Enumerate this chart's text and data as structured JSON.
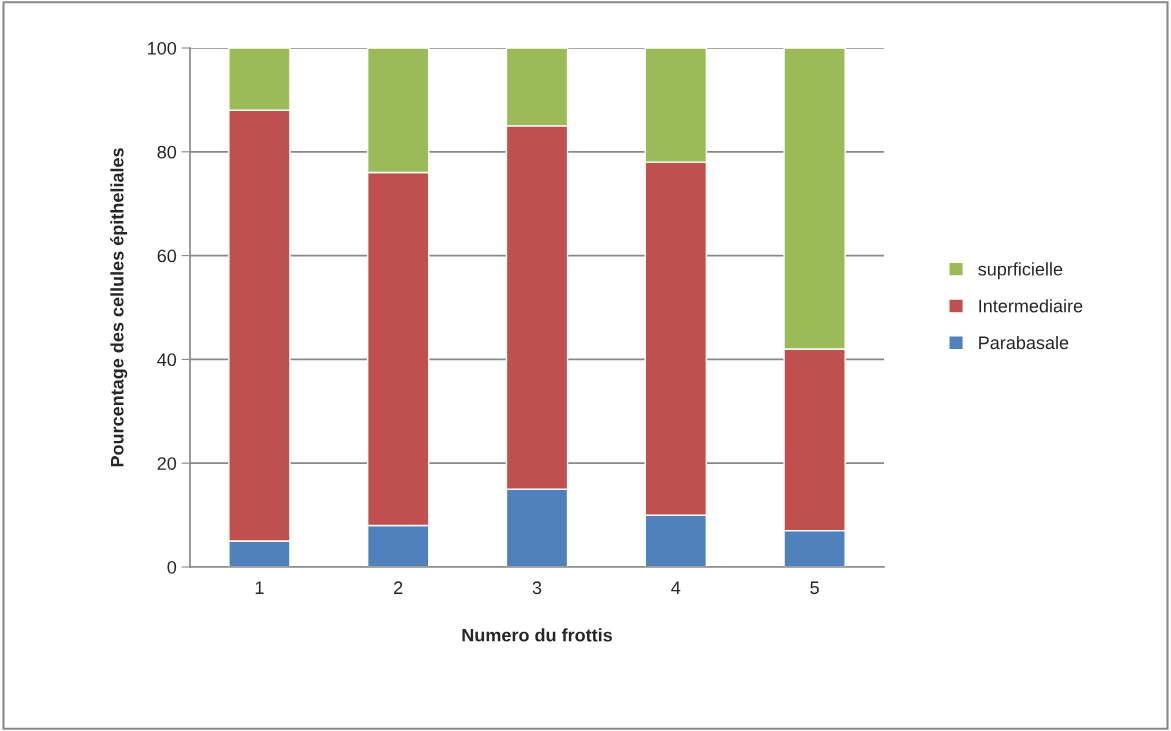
{
  "chart_data": {
    "type": "bar",
    "stacked": true,
    "xlabel": "Numero du frottis",
    "ylabel": "Pourcentage des cellules épitheliales",
    "categories": [
      "1",
      "2",
      "3",
      "4",
      "5"
    ],
    "series": [
      {
        "name": "Parabasale",
        "color": "#4f81bd",
        "values": [
          5,
          8,
          15,
          10,
          7
        ]
      },
      {
        "name": "Intermediaire",
        "color": "#c0504d",
        "values": [
          83,
          68,
          70,
          68,
          35
        ]
      },
      {
        "name": "suprficielle",
        "color": "#9bbb59",
        "values": [
          12,
          24,
          15,
          22,
          58
        ]
      }
    ],
    "ylim": [
      0,
      100
    ],
    "yticks": [
      0,
      20,
      40,
      60,
      80,
      100
    ],
    "grid": "y",
    "legend": "right"
  }
}
